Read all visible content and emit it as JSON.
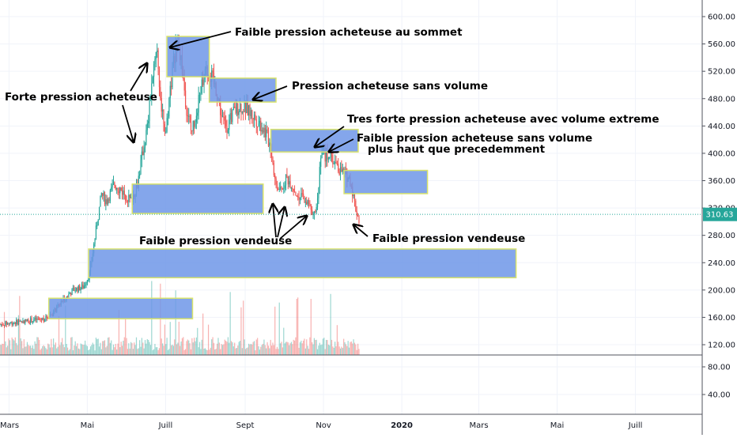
{
  "chart_data": {
    "type": "candlestick",
    "title": "",
    "xlabel": "",
    "ylabel": "",
    "price_axis": {
      "ticks": [
        "600.00",
        "560.00",
        "520.00",
        "480.00",
        "440.00",
        "400.00",
        "360.00",
        "320.00",
        "280.00",
        "240.00",
        "200.00",
        "160.00",
        "120.00"
      ],
      "range": [
        106,
        620
      ]
    },
    "volume_axis": {
      "ticks": [
        "80.00",
        "40.00"
      ],
      "range": [
        0,
        100
      ]
    },
    "time_axis": {
      "labels": [
        "Mars",
        "Mai",
        "Juill",
        "Sept",
        "Nov",
        "2020",
        "Mars",
        "Mai",
        "Juill"
      ],
      "label_days": [
        0,
        61,
        122,
        184,
        245,
        306,
        366,
        427,
        488
      ],
      "range_days": [
        -7,
        540
      ]
    },
    "last_price": {
      "value": 310.63,
      "label": "310.63"
    },
    "candles_trend": [
      {
        "day": -7,
        "price": 150
      },
      {
        "day": 10,
        "price": 154
      },
      {
        "day": 28,
        "price": 158
      },
      {
        "day": 35,
        "price": 168
      },
      {
        "day": 42,
        "price": 185
      },
      {
        "day": 50,
        "price": 200
      },
      {
        "day": 58,
        "price": 205
      },
      {
        "day": 63,
        "price": 225
      },
      {
        "day": 66,
        "price": 265
      },
      {
        "day": 72,
        "price": 340
      },
      {
        "day": 76,
        "price": 330
      },
      {
        "day": 82,
        "price": 355
      },
      {
        "day": 88,
        "price": 345
      },
      {
        "day": 95,
        "price": 330
      },
      {
        "day": 100,
        "price": 355
      },
      {
        "day": 104,
        "price": 400
      },
      {
        "day": 108,
        "price": 440
      },
      {
        "day": 112,
        "price": 520
      },
      {
        "day": 115,
        "price": 560
      },
      {
        "day": 118,
        "price": 480
      },
      {
        "day": 122,
        "price": 430
      },
      {
        "day": 126,
        "price": 500
      },
      {
        "day": 130,
        "price": 560
      },
      {
        "day": 134,
        "price": 540
      },
      {
        "day": 138,
        "price": 470
      },
      {
        "day": 142,
        "price": 430
      },
      {
        "day": 146,
        "price": 460
      },
      {
        "day": 150,
        "price": 500
      },
      {
        "day": 154,
        "price": 520
      },
      {
        "day": 158,
        "price": 510
      },
      {
        "day": 162,
        "price": 490
      },
      {
        "day": 166,
        "price": 450
      },
      {
        "day": 170,
        "price": 440
      },
      {
        "day": 175,
        "price": 460
      },
      {
        "day": 180,
        "price": 470
      },
      {
        "day": 185,
        "price": 465
      },
      {
        "day": 190,
        "price": 455
      },
      {
        "day": 195,
        "price": 445
      },
      {
        "day": 200,
        "price": 430
      },
      {
        "day": 204,
        "price": 410
      },
      {
        "day": 208,
        "price": 350
      },
      {
        "day": 212,
        "price": 345
      },
      {
        "day": 216,
        "price": 365
      },
      {
        "day": 220,
        "price": 355
      },
      {
        "day": 224,
        "price": 340
      },
      {
        "day": 228,
        "price": 335
      },
      {
        "day": 232,
        "price": 330
      },
      {
        "day": 236,
        "price": 315
      },
      {
        "day": 240,
        "price": 325
      },
      {
        "day": 243,
        "price": 405
      },
      {
        "day": 246,
        "price": 395
      },
      {
        "day": 250,
        "price": 400
      },
      {
        "day": 254,
        "price": 385
      },
      {
        "day": 258,
        "price": 375
      },
      {
        "day": 262,
        "price": 370
      },
      {
        "day": 266,
        "price": 360
      },
      {
        "day": 270,
        "price": 320
      },
      {
        "day": 273,
        "price": 300
      }
    ],
    "zones": [
      {
        "label": "z1",
        "day_start": 31,
        "day_end": 143,
        "price_low": 158,
        "price_high": 188
      },
      {
        "label": "z2",
        "day_start": 62,
        "day_end": 395,
        "price_low": 218,
        "price_high": 260
      },
      {
        "label": "z3",
        "day_start": 96,
        "day_end": 198,
        "price_low": 312,
        "price_high": 355
      },
      {
        "label": "z4",
        "day_start": 123,
        "day_end": 156,
        "price_low": 512,
        "price_high": 571
      },
      {
        "label": "z5",
        "day_start": 156,
        "day_end": 208,
        "price_low": 475,
        "price_high": 510
      },
      {
        "label": "z6",
        "day_start": 204,
        "day_end": 272,
        "price_low": 402,
        "price_high": 435
      },
      {
        "label": "z7",
        "day_start": 261,
        "day_end": 326,
        "price_low": 341,
        "price_high": 375
      }
    ],
    "annotations": [
      {
        "text": "Faible pression acheteuse au sommet"
      },
      {
        "text": "Forte pression acheteuse"
      },
      {
        "text": "Pression acheteuse sans volume"
      },
      {
        "text": "Tres forte pression acheteuse avec volume extreme"
      },
      {
        "text": "Faible pression acheteuse sans volume"
      },
      {
        "text": "plus haut que precedemment"
      },
      {
        "text": "Faible pression vendeuse"
      },
      {
        "text": "Faible pression vendeuse"
      }
    ],
    "colors": {
      "up": "#26a69a",
      "down": "#ef5350",
      "zone_fill": "#6f97e8",
      "zone_border": "#d8e36c",
      "grid": "#f0f3fa",
      "badge": "#26a69a",
      "axis_text": "#131722"
    },
    "grid": true
  }
}
